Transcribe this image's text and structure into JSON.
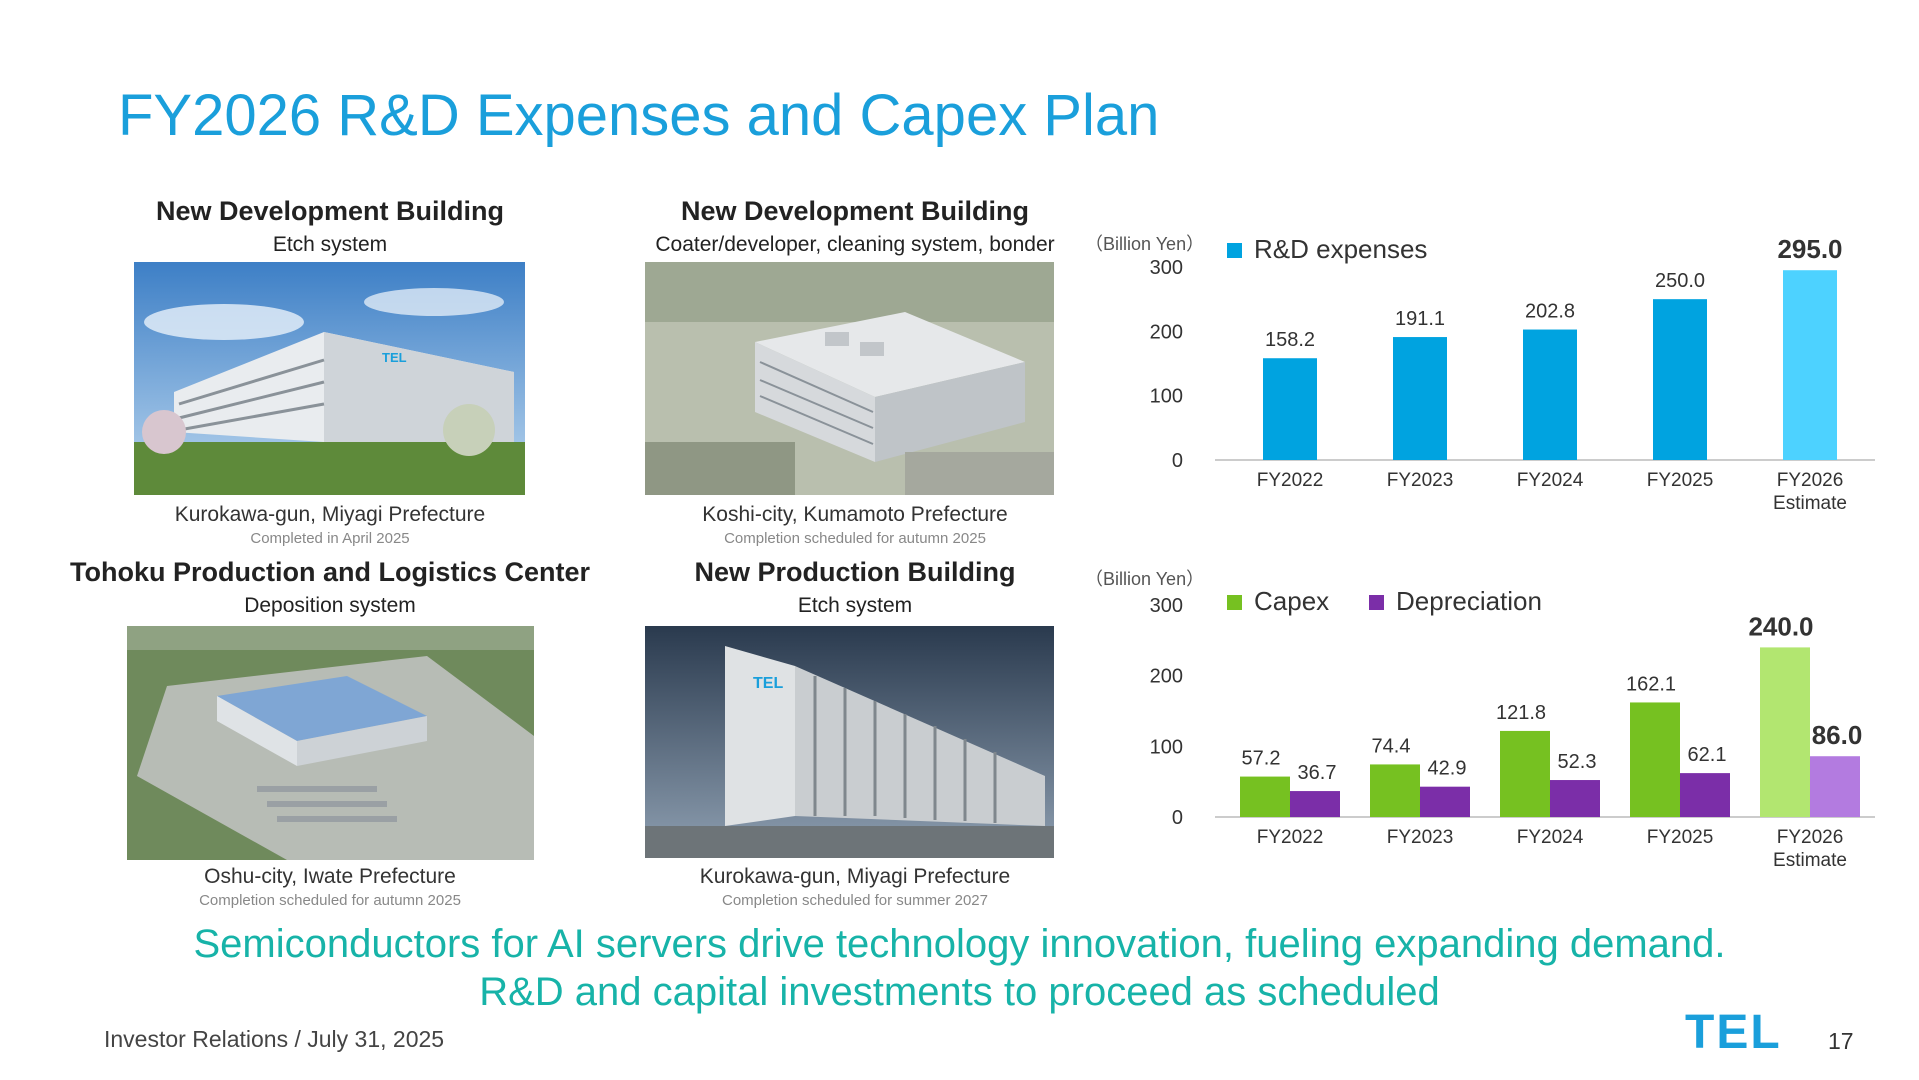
{
  "title": "FY2026 R&D Expenses and Capex Plan",
  "panels": [
    {
      "heading": "New Development Building",
      "subheading": "Etch system",
      "location": "Kurokawa-gun, Miyagi Prefecture",
      "note": "Completed in April 2025"
    },
    {
      "heading": "New Development Building",
      "subheading": "Coater/developer, cleaning system, bonder",
      "location": "Koshi-city, Kumamoto Prefecture",
      "note": "Completion scheduled for autumn 2025"
    },
    {
      "heading": "Tohoku Production and Logistics Center",
      "subheading": "Deposition system",
      "location": "Oshu-city, Iwate Prefecture",
      "note": "Completion scheduled for autumn 2025"
    },
    {
      "heading": "New Production Building",
      "subheading": "Etch system",
      "location": "Kurokawa-gun, Miyagi Prefecture",
      "note": "Completion scheduled for summer 2027"
    }
  ],
  "building_sign": "TEL",
  "chart_data": [
    {
      "type": "bar",
      "unit_label": "（Billion Yen）",
      "categories": [
        "FY2022",
        "FY2023",
        "FY2024",
        "FY2025",
        "FY2026\nEstimate"
      ],
      "series": [
        {
          "name": "R&D expenses",
          "values": [
            158.2,
            191.1,
            202.8,
            250.0,
            295.0
          ],
          "labels": [
            "158.2",
            "191.1",
            "202.8",
            "250.0",
            "295.0"
          ],
          "color": "#00a3e0",
          "highlight_color": "#4dd2ff"
        }
      ],
      "ylim": [
        0,
        300
      ],
      "yticks": [
        "0",
        "100",
        "200",
        "300"
      ],
      "legend": "top-left",
      "grid": false
    },
    {
      "type": "bar",
      "unit_label": "（Billion Yen）",
      "categories": [
        "FY2022",
        "FY2023",
        "FY2024",
        "FY2025",
        "FY2026\nEstimate"
      ],
      "series": [
        {
          "name": "Capex",
          "values": [
            57.2,
            74.4,
            121.8,
            162.1,
            240.0
          ],
          "labels": [
            "57.2",
            "74.4",
            "121.8",
            "162.1",
            "240.0"
          ],
          "color": "#76c121",
          "highlight_color": "#b2e670"
        },
        {
          "name": "Depreciation",
          "values": [
            36.7,
            42.9,
            52.3,
            62.1,
            86.0
          ],
          "labels": [
            "36.7",
            "42.9",
            "52.3",
            "62.1",
            "86.0"
          ],
          "color": "#7b2ea8",
          "highlight_color": "#b37be0"
        }
      ],
      "ylim": [
        0,
        300
      ],
      "yticks": [
        "0",
        "100",
        "200",
        "300"
      ],
      "legend": "top-left",
      "grid": false
    }
  ],
  "tagline": [
    "Semiconductors for AI servers drive technology innovation, fueling expanding demand.",
    "R&D and capital investments to proceed as scheduled"
  ],
  "footer": "Investor Relations / July 31, 2025",
  "logo": "TEL",
  "page_number": "17",
  "colors": {
    "title": "#1a9fdb",
    "tagline": "#17b3a8",
    "logo": "#1a9fdb"
  }
}
